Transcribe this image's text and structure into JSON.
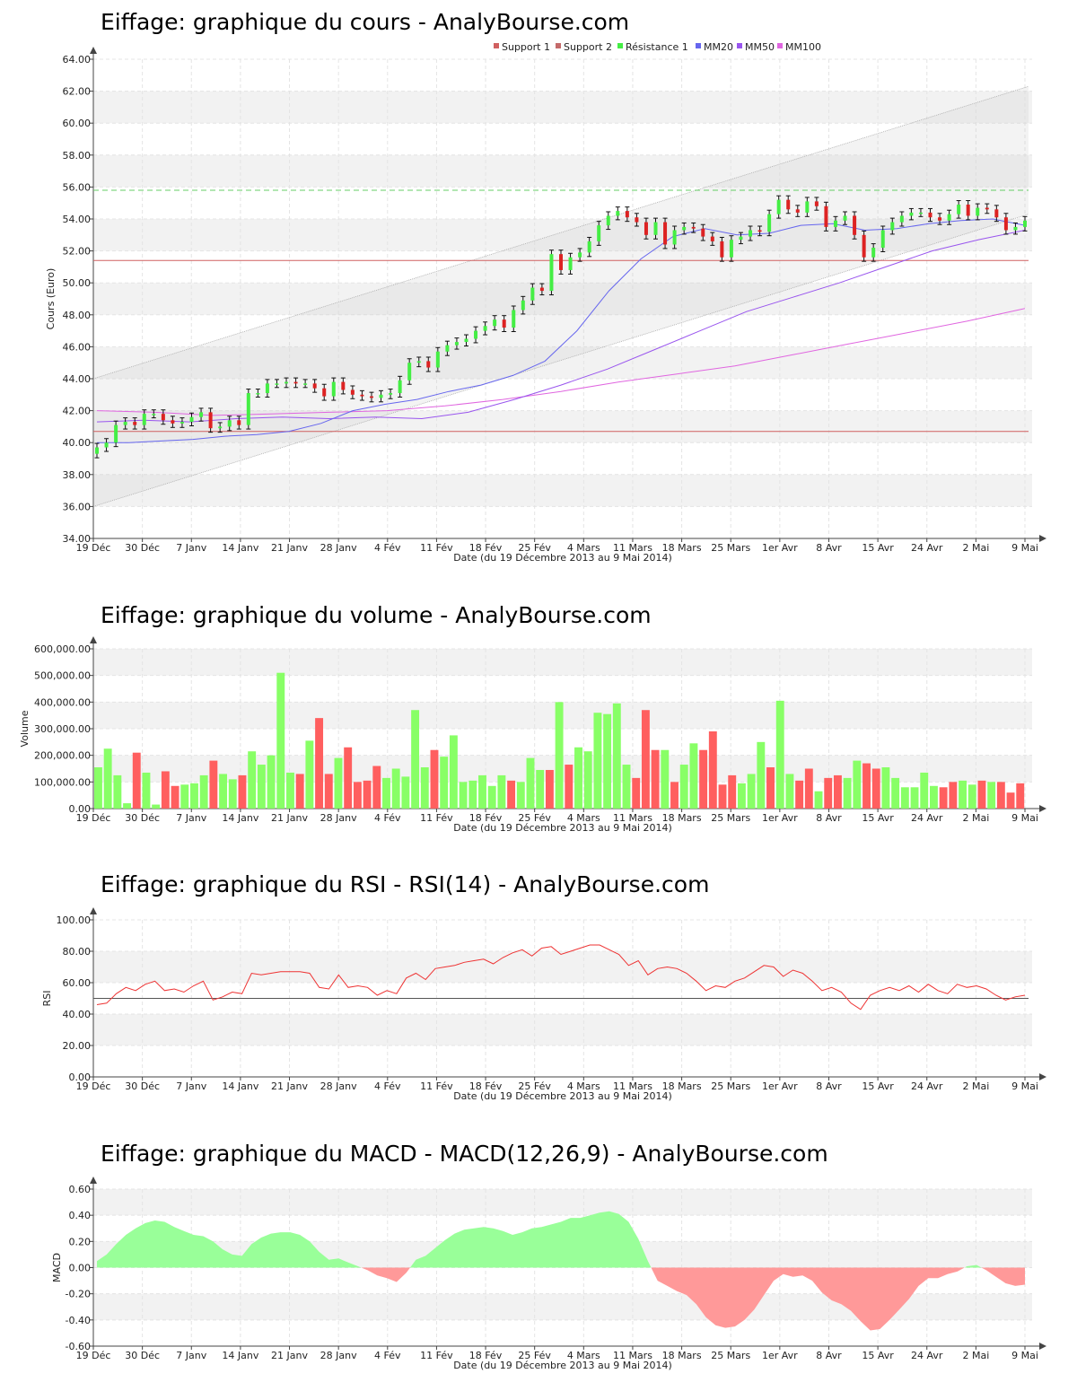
{
  "x_axis": {
    "label": "Date (du 19 Décembre 2013 au 9 Mai 2014)",
    "ticks": [
      "19 Déc",
      "30 Déc",
      "7 Janv",
      "14 Janv",
      "21 Janv",
      "28 Janv",
      "4 Fév",
      "11 Fév",
      "18 Fév",
      "25 Fév",
      "4 Mars",
      "11 Mars",
      "18 Mars",
      "25 Mars",
      "1er Avr",
      "8 Avr",
      "15 Avr",
      "24 Avr",
      "2 Mai",
      "9 Mai"
    ]
  },
  "colors": {
    "up": "#44ee44",
    "down": "#dd2222",
    "up_bar": "#88ff66",
    "down_bar": "#ff5f5f",
    "mm20": "#6666ee",
    "mm50": "#9955ee",
    "mm100": "#e066e0",
    "support": "#d06060",
    "resistance": "#66cc66",
    "rsi": "#ee3333",
    "macd_pos": "#99ff99",
    "macd_neg": "#ff9999"
  },
  "chart_data": [
    {
      "type": "candlestick",
      "title": "Eiffage: graphique du cours - AnalyBourse.com",
      "ylabel": "Cours (Euro)",
      "xlabel": "Date (du 19 Décembre 2013 au 9 Mai 2014)",
      "ylim": [
        34,
        64
      ],
      "yticks": [
        "34.00",
        "36.00",
        "38.00",
        "40.00",
        "42.00",
        "44.00",
        "46.00",
        "48.00",
        "50.00",
        "52.00",
        "54.00",
        "56.00",
        "58.00",
        "60.00",
        "62.00",
        "64.00"
      ],
      "legend": [
        "Support 1",
        "Support 2",
        "Résistance 1",
        "MM20",
        "MM50",
        "MM100"
      ],
      "legend_position": "top",
      "grid": true,
      "support1": 40.7,
      "support2": 51.4,
      "resistance1": 55.8,
      "channel_upper": [
        44.0,
        62.3
      ],
      "channel_lower": [
        36.0,
        54.3
      ],
      "close": [
        39.7,
        40.0,
        41.1,
        41.3,
        41.1,
        41.8,
        41.8,
        41.4,
        41.2,
        41.3,
        41.6,
        41.9,
        40.9,
        41.0,
        41.4,
        41.1,
        43.1,
        43.1,
        43.7,
        43.7,
        43.8,
        43.7,
        43.7,
        43.4,
        42.9,
        43.8,
        43.3,
        43.0,
        42.9,
        42.8,
        43.0,
        43.1,
        43.9,
        45.0,
        45.1,
        44.7,
        45.7,
        46.1,
        46.3,
        46.5,
        47.0,
        47.3,
        47.7,
        47.2,
        48.3,
        48.9,
        49.7,
        49.5,
        51.8,
        50.8,
        51.6,
        51.9,
        52.6,
        53.6,
        54.2,
        54.5,
        54.1,
        53.8,
        53.0,
        53.8,
        52.4,
        53.3,
        53.5,
        53.4,
        52.9,
        52.6,
        51.6,
        52.7,
        52.9,
        53.3,
        53.2,
        54.3,
        55.2,
        54.6,
        54.4,
        55.1,
        54.8,
        53.5,
        53.9,
        54.2,
        53.0,
        51.6,
        52.2,
        53.3,
        53.8,
        54.2,
        54.4,
        54.4,
        54.1,
        53.9,
        54.3,
        54.9,
        54.2,
        54.7,
        54.6,
        54.1,
        53.3,
        53.5,
        53.9
      ],
      "mm20": [
        40.0,
        40.0,
        40.1,
        40.2,
        40.4,
        40.5,
        40.7,
        41.2,
        42.0,
        42.4,
        42.7,
        43.2,
        43.6,
        44.2,
        45.1,
        47.0,
        49.5,
        51.5,
        52.9,
        53.4,
        53.0,
        53.1,
        53.6,
        53.7,
        53.3,
        53.4,
        53.7,
        53.9,
        54.0,
        53.6
      ],
      "mm50": [
        41.3,
        41.4,
        41.3,
        41.5,
        41.6,
        41.5,
        41.6,
        41.5,
        41.9,
        42.7,
        43.6,
        44.6,
        45.8,
        47.0,
        48.2,
        49.1,
        50.0,
        51.0,
        52.0,
        52.7,
        53.3
      ],
      "mm100": [
        42.0,
        41.9,
        41.7,
        41.8,
        41.9,
        42.0,
        42.3,
        42.7,
        43.2,
        43.8,
        44.3,
        44.8,
        45.5,
        46.2,
        46.9,
        47.6,
        48.4
      ]
    },
    {
      "type": "bar",
      "title": "Eiffage: graphique du volume - AnalyBourse.com",
      "ylabel": "Volume",
      "xlabel": "Date (du 19 Décembre 2013 au 9 Mai 2014)",
      "ylim": [
        0,
        600000
      ],
      "yticks": [
        "0.00",
        "100,000.00",
        "200,000.00",
        "300,000.00",
        "400,000.00",
        "500,000.00",
        "600,000.00"
      ],
      "grid": true,
      "values": [
        155000,
        225000,
        125000,
        20000,
        210000,
        135000,
        15000,
        140000,
        85000,
        90000,
        95000,
        125000,
        180000,
        130000,
        110000,
        125000,
        215000,
        165000,
        200000,
        510000,
        135000,
        130000,
        255000,
        340000,
        130000,
        190000,
        230000,
        100000,
        105000,
        160000,
        115000,
        150000,
        120000,
        370000,
        155000,
        220000,
        195000,
        275000,
        100000,
        105000,
        125000,
        85000,
        125000,
        105000,
        100000,
        190000,
        145000,
        145000,
        400000,
        165000,
        230000,
        215000,
        360000,
        355000,
        395000,
        165000,
        115000,
        370000,
        220000,
        220000,
        100000,
        165000,
        245000,
        220000,
        290000,
        90000,
        125000,
        95000,
        130000,
        250000,
        155000,
        405000,
        130000,
        105000,
        150000,
        65000,
        115000,
        125000,
        115000,
        180000,
        170000,
        150000,
        155000,
        115000,
        80000,
        80000,
        135000,
        85000,
        80000,
        100000,
        105000,
        90000,
        105000,
        100000,
        100000,
        60000,
        95000
      ]
    },
    {
      "type": "line",
      "title": "Eiffage: graphique du RSI - RSI(14) - AnalyBourse.com",
      "ylabel": "RSI",
      "xlabel": "Date (du 19 Décembre 2013 au 9 Mai 2014)",
      "ylim": [
        0,
        100
      ],
      "yticks": [
        "0.00",
        "20.00",
        "40.00",
        "60.00",
        "80.00",
        "100.00"
      ],
      "grid": true,
      "reference": 50,
      "values": [
        46,
        47,
        53,
        57,
        55,
        59,
        61,
        55,
        56,
        54,
        58,
        61,
        49,
        51,
        54,
        53,
        66,
        65,
        66,
        67,
        67,
        67,
        66,
        57,
        56,
        65,
        57,
        58,
        57,
        52,
        55,
        53,
        63,
        66,
        62,
        69,
        70,
        71,
        73,
        74,
        75,
        72,
        76,
        79,
        81,
        77,
        82,
        83,
        78,
        80,
        82,
        84,
        84,
        81,
        78,
        71,
        74,
        65,
        69,
        70,
        69,
        66,
        61,
        55,
        58,
        57,
        61,
        63,
        67,
        71,
        70,
        64,
        68,
        66,
        61,
        55,
        57,
        54,
        47,
        43,
        52,
        55,
        57,
        55,
        58,
        54,
        59,
        55,
        53,
        59,
        57,
        58,
        56,
        52,
        49,
        51,
        52
      ]
    },
    {
      "type": "area",
      "title": "Eiffage: graphique du MACD - MACD(12,26,9) - AnalyBourse.com",
      "ylabel": "MACD",
      "xlabel": "Date (du 19 Décembre 2013 au 9 Mai 2014)",
      "ylim": [
        -0.6,
        0.6
      ],
      "yticks": [
        "-0.60",
        "-0.40",
        "-0.20",
        "0.00",
        "0.20",
        "0.40",
        "0.60"
      ],
      "grid": true,
      "values": [
        0.05,
        0.1,
        0.18,
        0.25,
        0.3,
        0.34,
        0.36,
        0.35,
        0.31,
        0.28,
        0.25,
        0.24,
        0.2,
        0.14,
        0.1,
        0.09,
        0.18,
        0.23,
        0.26,
        0.27,
        0.27,
        0.25,
        0.2,
        0.12,
        0.06,
        0.07,
        0.04,
        0.01,
        -0.02,
        -0.06,
        -0.08,
        -0.11,
        -0.04,
        0.06,
        0.09,
        0.15,
        0.21,
        0.26,
        0.29,
        0.3,
        0.31,
        0.3,
        0.28,
        0.25,
        0.27,
        0.3,
        0.31,
        0.33,
        0.35,
        0.38,
        0.38,
        0.4,
        0.42,
        0.43,
        0.41,
        0.35,
        0.22,
        0.05,
        -0.1,
        -0.14,
        -0.18,
        -0.21,
        -0.28,
        -0.38,
        -0.44,
        -0.46,
        -0.45,
        -0.4,
        -0.32,
        -0.21,
        -0.1,
        -0.05,
        -0.07,
        -0.06,
        -0.1,
        -0.19,
        -0.25,
        -0.28,
        -0.33,
        -0.41,
        -0.48,
        -0.47,
        -0.4,
        -0.32,
        -0.24,
        -0.14,
        -0.08,
        -0.08,
        -0.05,
        -0.03,
        0.01,
        0.02,
        -0.02,
        -0.07,
        -0.12,
        -0.14,
        -0.13
      ]
    }
  ]
}
